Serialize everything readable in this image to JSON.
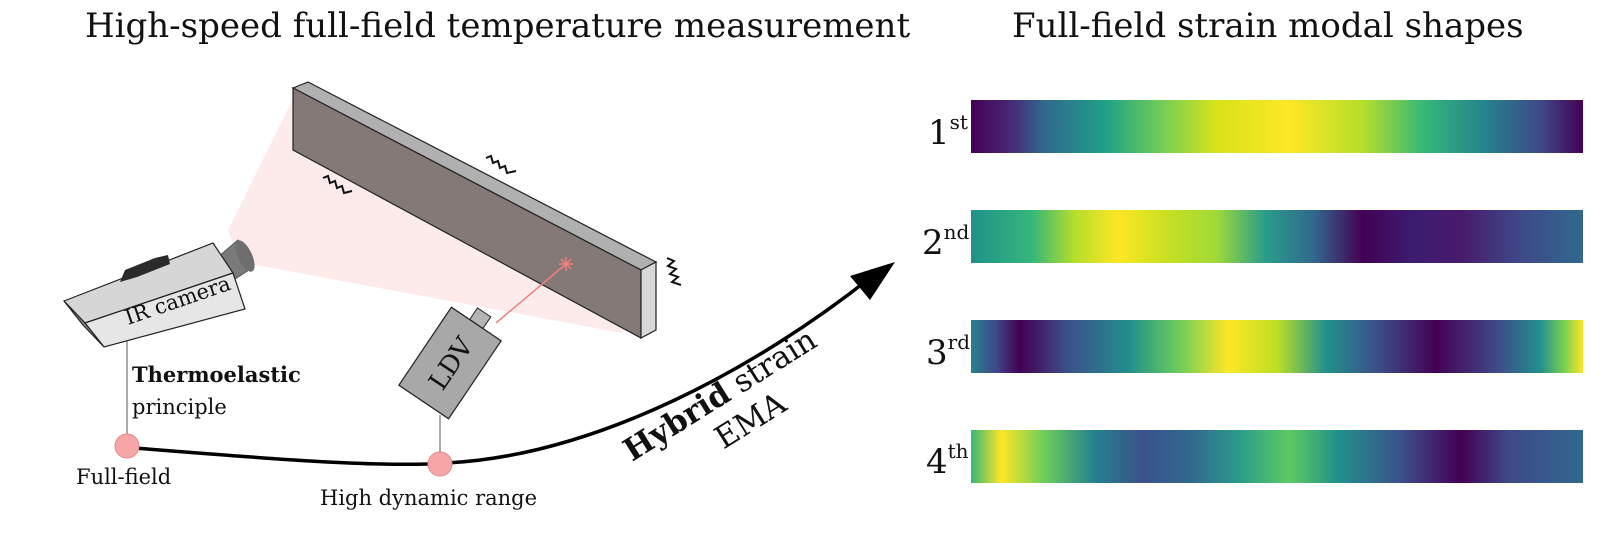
{
  "titles": {
    "left": "High-speed full-field temperature measurement",
    "right": "Full-field strain modal shapes"
  },
  "camera": {
    "label": "IR camera"
  },
  "ldv": {
    "label": "LDV"
  },
  "annotations": {
    "principle_bold": "Thermoelastic",
    "principle_text": "principle",
    "full_field": "Full-field",
    "dynamic_range": "High dynamic range"
  },
  "arrow": {
    "label_bold": "Hybrid",
    "label_rest": "strain",
    "label_line2": "EMA"
  },
  "modes": [
    {
      "number": "1",
      "suffix": "st"
    },
    {
      "number": "2",
      "suffix": "nd"
    },
    {
      "number": "3",
      "suffix": "rd"
    },
    {
      "number": "4",
      "suffix": "th"
    }
  ],
  "colors": {
    "beam_front": "#857978",
    "beam_top": "#b0b0b0",
    "beam_side": "#cfcfcf",
    "fov_cone": "#fde9e9",
    "marker": "#f6a6a6",
    "laser": "#f08080",
    "ldv_body": "#a8a8a8",
    "camera_body": "#e6e6e6",
    "camera_dark": "#888888"
  },
  "colormap": "viridis"
}
